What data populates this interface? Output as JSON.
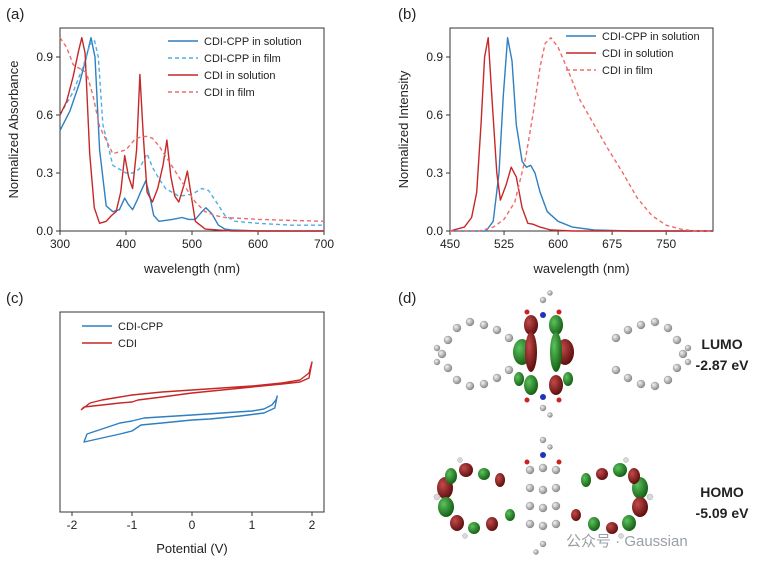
{
  "colors": {
    "blue": "#2f7fc1",
    "lightblue": "#4eaee6",
    "red": "#c62828",
    "lightred": "#ef6b6b"
  },
  "panels": {
    "a": "(a)",
    "b": "(b)",
    "c": "(c)",
    "d": "(d)"
  },
  "chart_data": [
    {
      "type": "line",
      "panel": "a",
      "xlabel": "wavelength (nm)",
      "ylabel": "Normalized Absorbance",
      "xlim": [
        300,
        700
      ],
      "ylim": [
        0,
        1.05
      ],
      "xticks": [
        "300",
        "400",
        "500",
        "600",
        "700"
      ],
      "yticks": [
        "0.0",
        "0.3",
        "0.6",
        "0.9"
      ],
      "legend_position": "top-right",
      "series": [
        {
          "name": "CDI-CPP in solution",
          "style": "solid",
          "color": "#2f7fc1",
          "x": [
            300,
            315,
            330,
            340,
            347,
            353,
            360,
            370,
            380,
            390,
            398,
            403,
            410,
            417,
            422,
            430,
            436,
            442,
            450,
            470,
            485,
            495,
            505,
            515,
            521,
            530,
            540,
            550,
            560,
            600,
            700
          ],
          "y": [
            0.52,
            0.62,
            0.77,
            0.9,
            1.0,
            0.9,
            0.42,
            0.13,
            0.1,
            0.11,
            0.17,
            0.14,
            0.11,
            0.16,
            0.2,
            0.26,
            0.18,
            0.08,
            0.05,
            0.06,
            0.07,
            0.06,
            0.06,
            0.1,
            0.12,
            0.09,
            0.03,
            0.01,
            0.005,
            0.0,
            0.0
          ]
        },
        {
          "name": "CDI-CPP in film",
          "style": "dashed",
          "color": "#4eaee6",
          "x": [
            300,
            320,
            335,
            345,
            352,
            358,
            365,
            380,
            400,
            410,
            420,
            432,
            440,
            450,
            460,
            480,
            500,
            515,
            525,
            535,
            550,
            565,
            600,
            650,
            700
          ],
          "y": [
            0.6,
            0.72,
            0.85,
            0.96,
            0.99,
            0.9,
            0.55,
            0.34,
            0.3,
            0.3,
            0.32,
            0.4,
            0.33,
            0.27,
            0.22,
            0.18,
            0.19,
            0.22,
            0.21,
            0.16,
            0.08,
            0.05,
            0.04,
            0.03,
            0.03
          ]
        },
        {
          "name": "CDI in solution",
          "style": "solid",
          "color": "#c62828",
          "x": [
            300,
            310,
            320,
            328,
            333,
            338,
            345,
            352,
            360,
            370,
            378,
            385,
            392,
            398,
            404,
            410,
            416,
            421,
            426,
            432,
            440,
            448,
            456,
            462,
            468,
            474,
            480,
            488,
            493,
            498,
            505,
            520,
            560,
            700
          ],
          "y": [
            0.6,
            0.67,
            0.8,
            0.93,
            1.0,
            0.92,
            0.4,
            0.12,
            0.04,
            0.05,
            0.08,
            0.1,
            0.2,
            0.39,
            0.28,
            0.22,
            0.42,
            0.81,
            0.5,
            0.2,
            0.15,
            0.22,
            0.34,
            0.47,
            0.28,
            0.18,
            0.15,
            0.24,
            0.31,
            0.2,
            0.05,
            0.01,
            0.0,
            0.0
          ]
        },
        {
          "name": "CDI in film",
          "style": "dashed",
          "color": "#ef6b6b",
          "x": [
            300,
            310,
            320,
            330,
            340,
            350,
            360,
            380,
            400,
            415,
            430,
            440,
            450,
            465,
            480,
            495,
            505,
            520,
            535,
            550,
            575,
            600,
            650,
            700
          ],
          "y": [
            1.0,
            0.95,
            0.86,
            0.84,
            0.82,
            0.7,
            0.54,
            0.4,
            0.42,
            0.48,
            0.49,
            0.48,
            0.44,
            0.36,
            0.28,
            0.2,
            0.15,
            0.1,
            0.08,
            0.07,
            0.065,
            0.06,
            0.055,
            0.05
          ]
        }
      ]
    },
    {
      "type": "line",
      "panel": "b",
      "xlabel": "wavelength (nm)",
      "ylabel": "Normalized Intensity",
      "xlim": [
        450,
        815
      ],
      "ylim": [
        0,
        1.05
      ],
      "xticks": [
        "450",
        "525",
        "600",
        "675",
        "750"
      ],
      "yticks": [
        "0.0",
        "0.3",
        "0.6",
        "0.9"
      ],
      "legend_position": "top-right",
      "series": [
        {
          "name": "CDI-CPP in solution",
          "style": "solid",
          "color": "#2f7fc1",
          "x": [
            450,
            500,
            510,
            518,
            524,
            530,
            536,
            542,
            550,
            556,
            562,
            568,
            575,
            585,
            600,
            620,
            650,
            700,
            815
          ],
          "y": [
            0.0,
            0.0,
            0.05,
            0.3,
            0.7,
            1.0,
            0.88,
            0.55,
            0.36,
            0.33,
            0.34,
            0.3,
            0.2,
            0.1,
            0.05,
            0.02,
            0.005,
            0.0,
            0.0
          ]
        },
        {
          "name": "CDI in solution",
          "style": "solid",
          "color": "#c62828",
          "x": [
            450,
            470,
            480,
            487,
            493,
            498,
            503,
            508,
            515,
            520,
            528,
            535,
            542,
            550,
            558,
            565,
            575,
            590,
            620,
            815
          ],
          "y": [
            0.0,
            0.02,
            0.07,
            0.2,
            0.55,
            0.9,
            1.0,
            0.7,
            0.3,
            0.16,
            0.24,
            0.33,
            0.28,
            0.12,
            0.04,
            0.035,
            0.02,
            0.005,
            0.0,
            0.0
          ]
        },
        {
          "name": "CDI in film",
          "style": "dashed",
          "color": "#ef6b6b",
          "x": [
            450,
            490,
            510,
            525,
            540,
            555,
            565,
            575,
            582,
            590,
            600,
            615,
            630,
            650,
            670,
            690,
            710,
            730,
            750,
            770,
            790,
            815
          ],
          "y": [
            0.0,
            0.0,
            0.02,
            0.06,
            0.15,
            0.38,
            0.6,
            0.85,
            0.97,
            1.0,
            0.95,
            0.82,
            0.68,
            0.55,
            0.42,
            0.3,
            0.17,
            0.08,
            0.03,
            0.01,
            0.0,
            0.0
          ]
        }
      ]
    },
    {
      "type": "line",
      "panel": "c",
      "xlabel": "Potential (V)",
      "ylabel": "",
      "xlim": [
        -2.2,
        2.2
      ],
      "ylim": [
        -1,
        1
      ],
      "xticks": [
        "-2",
        "-1",
        "0",
        "1",
        "2"
      ],
      "yticks": [],
      "legend_position": "top-left",
      "series": [
        {
          "name": "CDI-CPP",
          "style": "solid",
          "color": "#2f7fc1",
          "x": [
            -1.75,
            -1.2,
            -1.0,
            -0.8,
            0.0,
            0.5,
            1.0,
            1.2,
            1.33,
            1.4,
            1.42,
            1.38,
            1.2,
            0.8,
            0.3,
            0.0,
            -0.5,
            -0.85,
            -1.0,
            -1.2,
            -1.5,
            -1.8,
            -1.75
          ],
          "y": [
            -0.22,
            -0.11,
            -0.09,
            -0.06,
            -0.03,
            -0.01,
            0.01,
            0.03,
            0.07,
            0.12,
            0.16,
            0.04,
            -0.01,
            -0.04,
            -0.07,
            -0.08,
            -0.11,
            -0.13,
            -0.19,
            -0.22,
            -0.26,
            -0.3,
            -0.22
          ]
        },
        {
          "name": "CDI",
          "style": "solid",
          "color": "#c62828",
          "x": [
            -1.85,
            -1.7,
            -1.5,
            -1.2,
            -1.0,
            -0.5,
            0.0,
            0.5,
            1.0,
            1.5,
            1.8,
            1.95,
            2.0,
            1.95,
            1.8,
            1.5,
            1.0,
            0.5,
            0.0,
            -0.5,
            -0.9,
            -1.0,
            -1.2,
            -1.5,
            -1.8,
            -1.85
          ],
          "y": [
            0.02,
            0.09,
            0.12,
            0.15,
            0.17,
            0.2,
            0.22,
            0.24,
            0.26,
            0.29,
            0.32,
            0.39,
            0.5,
            0.34,
            0.3,
            0.28,
            0.25,
            0.22,
            0.19,
            0.15,
            0.12,
            0.1,
            0.09,
            0.07,
            0.05,
            0.02
          ]
        }
      ]
    }
  ],
  "orbitals": {
    "lumo_label": "LUMO",
    "lumo_energy": "-2.87 eV",
    "homo_label": "HOMO",
    "homo_energy": "-5.09 eV"
  },
  "watermark": "公众号 · Gaussian"
}
